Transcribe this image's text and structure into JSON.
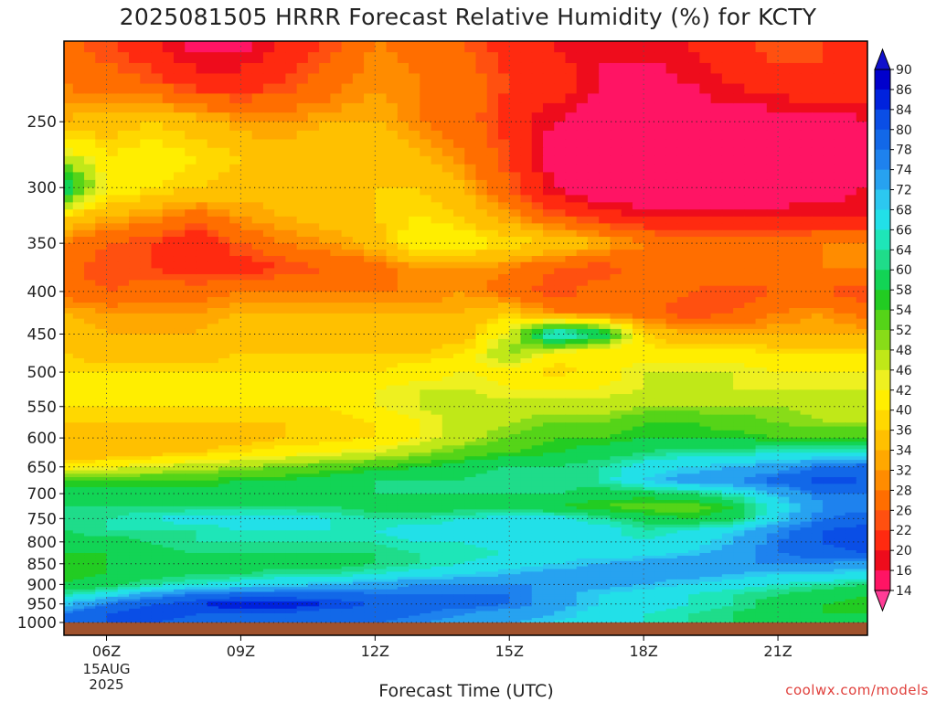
{
  "title": "2025081505 HRRR Forecast Relative Humidity (%) for KCTY",
  "xlabel": "Forecast Time (UTC)",
  "credit": "coolwx.com/models",
  "chart_data": {
    "type": "heatmap",
    "title": "2025081505 HRRR Forecast Relative Humidity (%) for KCTY",
    "xlabel": "Forecast Time (UTC)",
    "ylabel": "",
    "x_date_label": [
      "15AUG",
      "2025"
    ],
    "x_hours": [
      5,
      6,
      7,
      8,
      9,
      10,
      11,
      12,
      13,
      14,
      15,
      16,
      17,
      18,
      19,
      20,
      21,
      22,
      23
    ],
    "x_ticks": [
      {
        "hour": 6,
        "label": "06Z"
      },
      {
        "hour": 9,
        "label": "09Z"
      },
      {
        "hour": 12,
        "label": "12Z"
      },
      {
        "hour": 15,
        "label": "15Z"
      },
      {
        "hour": 18,
        "label": "18Z"
      },
      {
        "hour": 21,
        "label": "21Z"
      }
    ],
    "xlim": [
      5.05,
      23
    ],
    "pressure_levels": [
      200,
      225,
      250,
      275,
      300,
      325,
      350,
      375,
      400,
      425,
      450,
      475,
      500,
      525,
      550,
      575,
      600,
      625,
      650,
      675,
      700,
      725,
      750,
      775,
      800,
      825,
      850,
      875,
      900,
      925,
      950,
      975,
      1000
    ],
    "y_ticks": [
      250,
      300,
      350,
      400,
      450,
      500,
      550,
      600,
      650,
      700,
      750,
      800,
      850,
      900,
      950,
      1000
    ],
    "ylim": [
      200,
      1000
    ],
    "y_scale": "log-pressure (inverted)",
    "grid": true,
    "colorbar": {
      "labels": [
        90,
        86,
        84,
        80,
        78,
        74,
        72,
        68,
        66,
        64,
        60,
        58,
        54,
        52,
        48,
        46,
        42,
        40,
        36,
        34,
        32,
        28,
        26,
        22,
        20,
        16,
        14
      ],
      "colors": [
        "#0000cc",
        "#0022dd",
        "#0a4ee6",
        "#1268e8",
        "#1e82ee",
        "#27a2f0",
        "#2cc8f0",
        "#22e0e8",
        "#1ee6b8",
        "#1fdc8a",
        "#12d455",
        "#22cc22",
        "#55d418",
        "#88dc18",
        "#c0e818",
        "#eef020",
        "#ffee00",
        "#ffd800",
        "#ffc000",
        "#ffa800",
        "#ff8c00",
        "#ff6e00",
        "#ff5010",
        "#ff2a10",
        "#ee0c1c",
        "#ff1464",
        "#ff3c96"
      ],
      "over_color": "#1010cc",
      "under_color": "#ff3c96"
    },
    "ground_color": "#a0522d",
    "values": [
      [
        30,
        26,
        22,
        18,
        18,
        22,
        26,
        32,
        30,
        28,
        24,
        22,
        20,
        22,
        22,
        24,
        28,
        26,
        26
      ],
      [
        32,
        30,
        28,
        24,
        24,
        26,
        30,
        34,
        32,
        30,
        26,
        24,
        20,
        18,
        20,
        22,
        24,
        26,
        24
      ],
      [
        36,
        38,
        40,
        38,
        34,
        34,
        36,
        36,
        32,
        30,
        24,
        20,
        18,
        18,
        18,
        18,
        18,
        18,
        20
      ],
      [
        50,
        42,
        44,
        42,
        40,
        38,
        40,
        40,
        36,
        32,
        26,
        18,
        16,
        16,
        16,
        16,
        16,
        18,
        18
      ],
      [
        66,
        46,
        42,
        40,
        38,
        38,
        38,
        40,
        40,
        36,
        28,
        20,
        16,
        16,
        16,
        16,
        16,
        18,
        20
      ],
      [
        40,
        36,
        34,
        30,
        34,
        36,
        38,
        40,
        42,
        40,
        34,
        28,
        24,
        22,
        22,
        22,
        22,
        22,
        22
      ],
      [
        32,
        28,
        26,
        22,
        28,
        32,
        34,
        38,
        46,
        44,
        42,
        40,
        36,
        32,
        30,
        30,
        30,
        32,
        32
      ],
      [
        30,
        26,
        26,
        24,
        24,
        26,
        28,
        30,
        34,
        34,
        32,
        28,
        26,
        30,
        32,
        32,
        32,
        32,
        32
      ],
      [
        30,
        28,
        30,
        30,
        32,
        32,
        32,
        32,
        32,
        34,
        30,
        26,
        30,
        30,
        28,
        26,
        28,
        28,
        26
      ],
      [
        36,
        34,
        34,
        34,
        36,
        36,
        36,
        36,
        36,
        36,
        40,
        32,
        30,
        30,
        26,
        28,
        32,
        34,
        30
      ],
      [
        38,
        36,
        36,
        36,
        38,
        38,
        38,
        38,
        38,
        38,
        48,
        72,
        66,
        40,
        36,
        36,
        36,
        36,
        36
      ],
      [
        40,
        38,
        38,
        38,
        40,
        40,
        40,
        40,
        40,
        42,
        54,
        44,
        42,
        44,
        44,
        44,
        42,
        42,
        42
      ],
      [
        42,
        42,
        42,
        42,
        42,
        42,
        42,
        42,
        44,
        46,
        44,
        40,
        44,
        48,
        48,
        48,
        46,
        46,
        46
      ],
      [
        46,
        46,
        46,
        46,
        46,
        46,
        46,
        46,
        48,
        48,
        46,
        46,
        46,
        48,
        48,
        48,
        48,
        48,
        48
      ],
      [
        42,
        42,
        42,
        42,
        42,
        42,
        42,
        46,
        48,
        50,
        50,
        50,
        50,
        52,
        52,
        52,
        52,
        50,
        50
      ],
      [
        40,
        40,
        40,
        40,
        40,
        40,
        40,
        42,
        46,
        50,
        52,
        54,
        54,
        58,
        58,
        56,
        54,
        52,
        52
      ],
      [
        38,
        38,
        38,
        38,
        38,
        40,
        40,
        42,
        46,
        50,
        54,
        58,
        58,
        60,
        60,
        60,
        58,
        58,
        58
      ],
      [
        36,
        36,
        38,
        40,
        42,
        44,
        46,
        48,
        52,
        56,
        58,
        60,
        62,
        64,
        66,
        66,
        68,
        68,
        68
      ],
      [
        44,
        46,
        48,
        50,
        52,
        54,
        56,
        58,
        60,
        62,
        64,
        64,
        66,
        70,
        72,
        74,
        76,
        80,
        82
      ],
      [
        58,
        58,
        58,
        58,
        60,
        60,
        62,
        64,
        64,
        64,
        66,
        66,
        66,
        72,
        76,
        78,
        82,
        86,
        84
      ],
      [
        62,
        62,
        62,
        62,
        62,
        62,
        64,
        64,
        64,
        64,
        64,
        64,
        62,
        62,
        64,
        68,
        74,
        80,
        80
      ],
      [
        64,
        64,
        64,
        64,
        64,
        64,
        64,
        62,
        62,
        62,
        62,
        60,
        58,
        56,
        56,
        60,
        70,
        78,
        78
      ],
      [
        64,
        66,
        68,
        70,
        70,
        70,
        68,
        66,
        66,
        68,
        70,
        70,
        66,
        62,
        60,
        62,
        72,
        80,
        82
      ],
      [
        64,
        66,
        66,
        66,
        68,
        68,
        68,
        68,
        70,
        70,
        72,
        72,
        70,
        66,
        68,
        72,
        78,
        84,
        86
      ],
      [
        62,
        62,
        64,
        66,
        66,
        66,
        66,
        66,
        68,
        68,
        70,
        70,
        70,
        68,
        70,
        74,
        80,
        84,
        86
      ],
      [
        60,
        60,
        62,
        64,
        64,
        64,
        64,
        64,
        66,
        66,
        68,
        70,
        70,
        70,
        72,
        76,
        80,
        82,
        84
      ],
      [
        58,
        60,
        60,
        62,
        62,
        62,
        62,
        64,
        66,
        68,
        70,
        72,
        74,
        76,
        78,
        78,
        78,
        78,
        76
      ],
      [
        58,
        60,
        62,
        64,
        64,
        66,
        66,
        68,
        70,
        72,
        74,
        76,
        76,
        76,
        76,
        74,
        72,
        72,
        70
      ],
      [
        60,
        62,
        66,
        68,
        70,
        72,
        74,
        76,
        78,
        78,
        78,
        78,
        76,
        74,
        72,
        70,
        68,
        66,
        64
      ],
      [
        66,
        70,
        76,
        80,
        82,
        82,
        82,
        80,
        80,
        80,
        80,
        76,
        72,
        70,
        68,
        66,
        64,
        62,
        60
      ],
      [
        72,
        80,
        84,
        86,
        88,
        88,
        86,
        84,
        82,
        82,
        80,
        76,
        72,
        70,
        68,
        66,
        62,
        60,
        58
      ],
      [
        80,
        84,
        86,
        84,
        84,
        84,
        82,
        82,
        80,
        78,
        76,
        74,
        70,
        68,
        66,
        64,
        62,
        60,
        60
      ],
      [
        82,
        84,
        84,
        82,
        82,
        82,
        82,
        80,
        78,
        76,
        74,
        72,
        70,
        68,
        66,
        64,
        62,
        60,
        60
      ]
    ]
  }
}
